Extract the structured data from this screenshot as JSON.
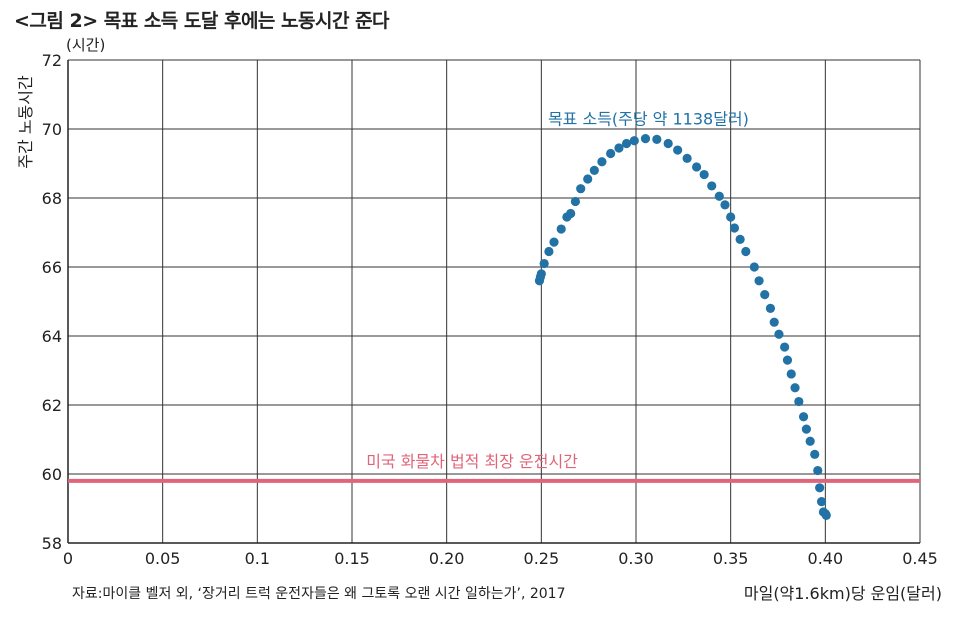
{
  "chart_data": {
    "type": "scatter",
    "title": "<그림 2> 목표 소득 도달 후에는 노동시간 준다",
    "ylabel": "주간 노동시간",
    "yunit": "(시간)",
    "xlabel": "마일(약1.6km)당 운임(달러)",
    "source": "자료:마이클 벨저 외, ‘장거리 트럭 운전자들은 왜 그토록 오랜 시간 일하는가’, 2017",
    "xlim": [
      0,
      0.45
    ],
    "ylim": [
      58,
      72
    ],
    "grid": true,
    "xticks": [
      "0",
      "0.05",
      "0.1",
      "0.15",
      "0.20",
      "0.25",
      "0.30",
      "0.35",
      "0.40",
      "0.45"
    ],
    "yticks": [
      "58",
      "60",
      "62",
      "64",
      "66",
      "68",
      "70",
      "72"
    ],
    "series_color": "#2272a6",
    "reference_color": "#e0657a",
    "series": [
      {
        "name": "목표 소득(주당 약 1138달러)",
        "x": [
          0.249,
          0.2495,
          0.25,
          0.2515,
          0.254,
          0.2567,
          0.2605,
          0.2635,
          0.2655,
          0.268,
          0.2708,
          0.2745,
          0.278,
          0.282,
          0.2866,
          0.291,
          0.295,
          0.2991,
          0.305,
          0.311,
          0.317,
          0.322,
          0.327,
          0.332,
          0.336,
          0.34,
          0.344,
          0.347,
          0.35,
          0.352,
          0.355,
          0.358,
          0.3625,
          0.365,
          0.368,
          0.371,
          0.373,
          0.3755,
          0.3785,
          0.38,
          0.382,
          0.384,
          0.386,
          0.3885,
          0.39,
          0.392,
          0.3944,
          0.396,
          0.397,
          0.398,
          0.399,
          0.4,
          0.4005
        ],
        "y": [
          65.6,
          65.71,
          65.8,
          66.1,
          66.45,
          66.72,
          67.1,
          67.45,
          67.55,
          67.9,
          68.27,
          68.55,
          68.8,
          69.05,
          69.29,
          69.45,
          69.58,
          69.66,
          69.72,
          69.7,
          69.58,
          69.39,
          69.15,
          68.9,
          68.68,
          68.35,
          68.05,
          67.8,
          67.45,
          67.13,
          66.8,
          66.45,
          66.0,
          65.6,
          65.2,
          64.8,
          64.4,
          64.05,
          63.68,
          63.3,
          62.9,
          62.5,
          62.1,
          61.66,
          61.3,
          60.95,
          60.57,
          60.1,
          59.6,
          59.2,
          58.9,
          58.85,
          58.8
        ]
      }
    ],
    "reference_line": {
      "name": "미국 화물차 법적 최장 운전시간",
      "y": 59.8
    }
  }
}
